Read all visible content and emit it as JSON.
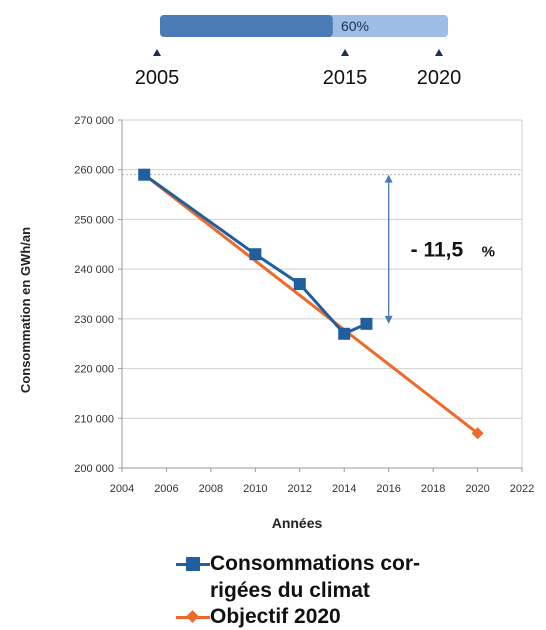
{
  "timeline": {
    "progress": 0.6,
    "progress_label": "60%",
    "bar_color": "#4a7bb7",
    "track_color": "#9dbde6",
    "milestones": [
      "2005",
      "2015",
      "2020"
    ],
    "milestone_years": [
      2005,
      2015,
      2020
    ]
  },
  "chart_data": {
    "type": "line",
    "title": "",
    "xlabel": "Années",
    "ylabel": "Consommation en GWh/an",
    "xlim": [
      2004,
      2022
    ],
    "ylim": [
      200000,
      270000
    ],
    "x_ticks": [
      2004,
      2006,
      2008,
      2010,
      2012,
      2014,
      2016,
      2018,
      2020,
      2022
    ],
    "y_ticks": [
      200000,
      210000,
      220000,
      230000,
      240000,
      250000,
      260000,
      270000
    ],
    "y_tick_labels": [
      "200 000",
      "210 000",
      "220 000",
      "230 000",
      "240 000",
      "250 000",
      "260 000",
      "270 000"
    ],
    "grid": "horizontal",
    "series": [
      {
        "name": "Consommations corrigées du climat",
        "color": "#1f5fa0",
        "marker": "square",
        "x": [
          2005,
          2010,
          2012,
          2014,
          2015
        ],
        "y": [
          259000,
          243000,
          237000,
          227000,
          229000
        ]
      },
      {
        "name": "Objectif 2020",
        "color": "#ee6a2a",
        "marker": "diamond",
        "x": [
          2005,
          2020
        ],
        "y": [
          259000,
          207000
        ]
      }
    ],
    "annotation": {
      "text": "- 11,5",
      "unit": "%",
      "x": 2016,
      "y_from": 259000,
      "y_to": 229000,
      "color": "#4a7bb7"
    },
    "reference_line_y": 259000
  },
  "legend": {
    "items": [
      {
        "label": "Consommations cor-rigées du climat"
      },
      {
        "label": "Objectif 2020"
      }
    ]
  }
}
